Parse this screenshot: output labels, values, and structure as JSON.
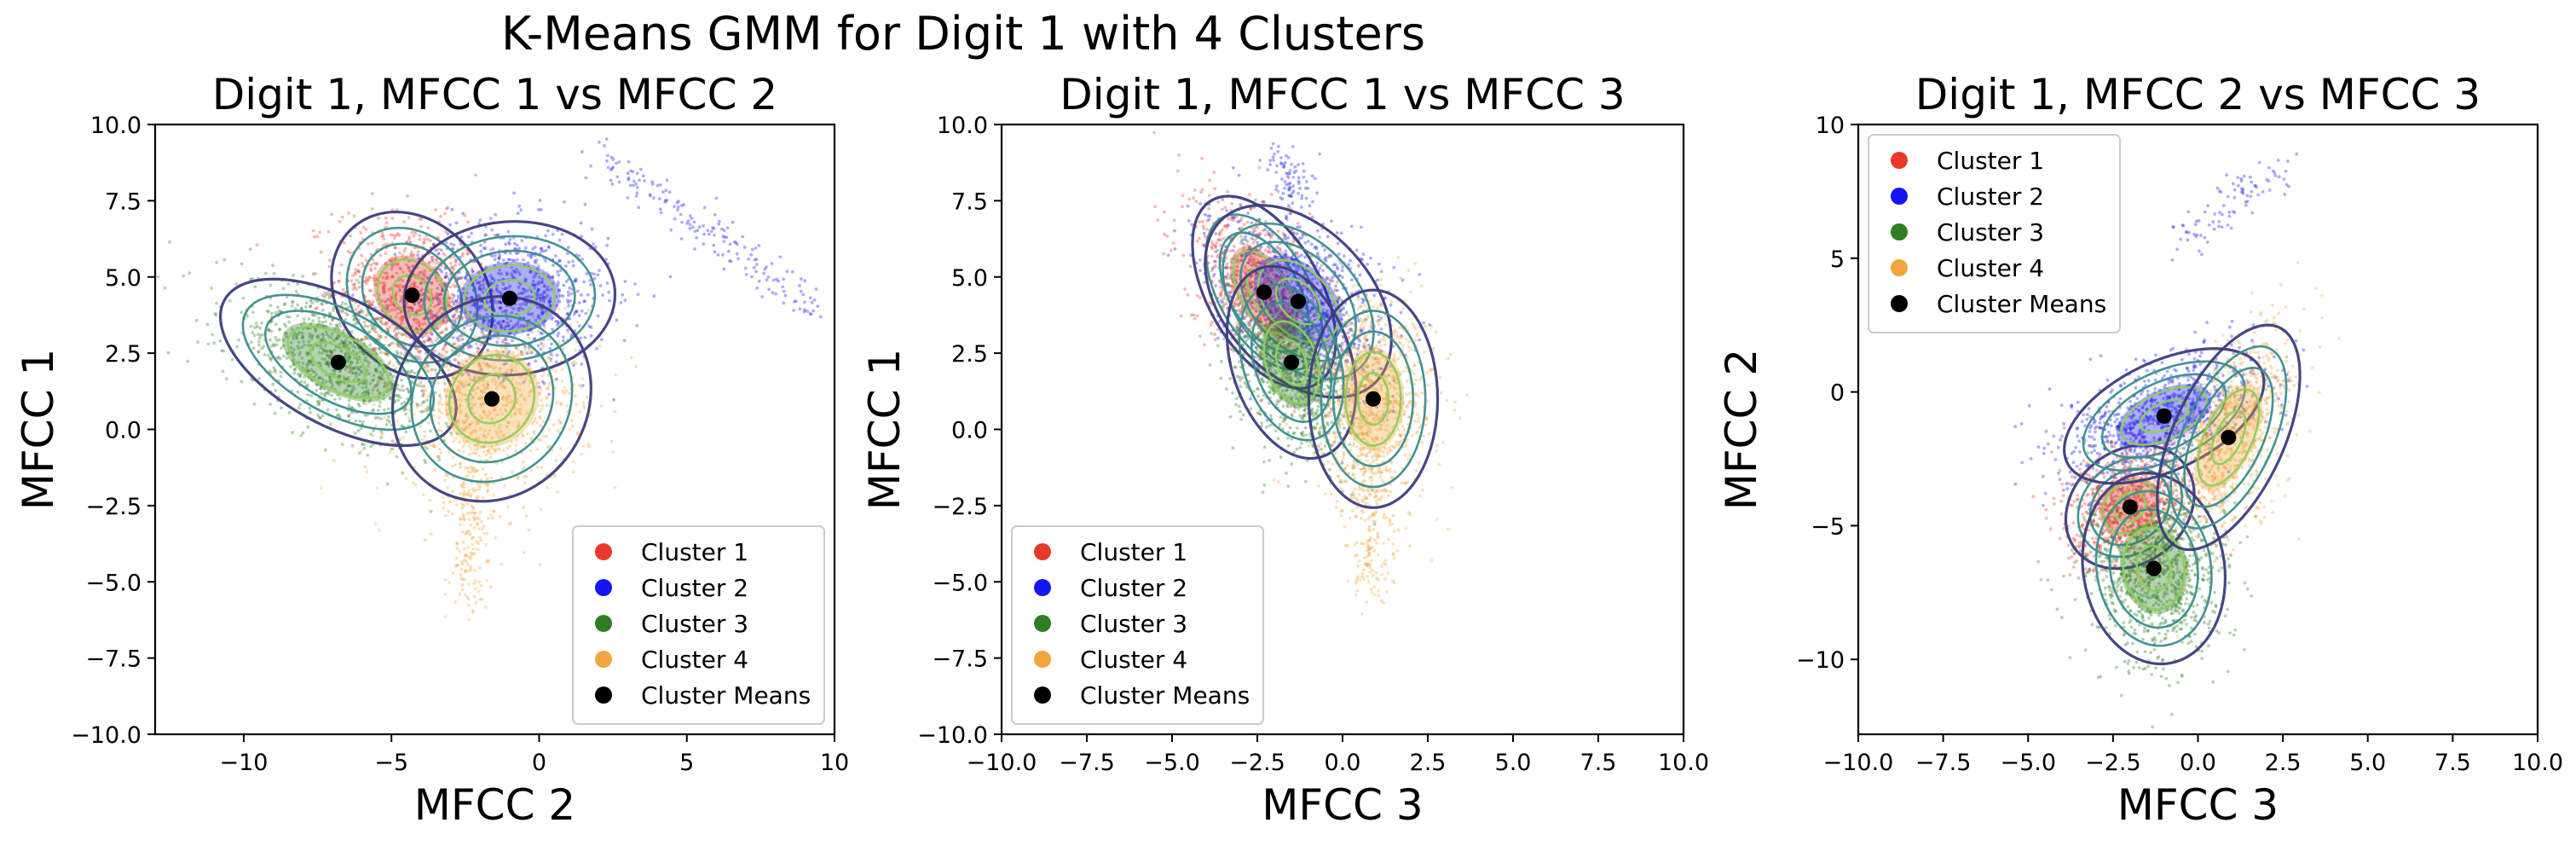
{
  "figure": {
    "suptitle": "K-Means GMM for Digit 1 with 4 Clusters"
  },
  "colors": {
    "cluster_1": "#e8392a",
    "cluster_2": "#1616f0",
    "cluster_3": "#2f7d25",
    "cluster_4": "#f0a63c",
    "means": "#000000",
    "contour_outer": "#3d3c7e",
    "contour_mid": "#3a8e8e",
    "contour_inner": "#8fcf5a"
  },
  "chart_data": [
    {
      "type": "scatter",
      "title": "Digit 1, MFCC 1 vs MFCC 2",
      "xlabel": "MFCC 2",
      "ylabel": "MFCC 1",
      "xlim": [
        -13,
        10
      ],
      "ylim": [
        -10,
        10
      ],
      "xticks": [
        -10,
        -5,
        0,
        5,
        10
      ],
      "xtick_labels": [
        "−10",
        "−5",
        "0",
        "5",
        "10"
      ],
      "yticks": [
        -10,
        -7.5,
        -5,
        -2.5,
        0,
        2.5,
        5,
        7.5,
        10
      ],
      "ytick_labels": [
        "−10.0",
        "−7.5",
        "−5.0",
        "−2.5",
        "0.0",
        "2.5",
        "5.0",
        "7.5",
        "10.0"
      ],
      "legend_position": "lower right",
      "series": [
        {
          "name": "Cluster 1",
          "center": [
            -4.3,
            4.4
          ],
          "spread": [
            1.3,
            1.3
          ],
          "rho": -0.2,
          "count": 900
        },
        {
          "name": "Cluster 2",
          "center": [
            -1.0,
            4.3
          ],
          "spread": [
            1.7,
            1.2
          ],
          "rho": 0.05,
          "count": 900,
          "tail": {
            "from": [
              2,
              9
            ],
            "to": [
              9.5,
              4
            ],
            "count": 180
          }
        },
        {
          "name": "Cluster 3",
          "center": [
            -6.8,
            2.2
          ],
          "spread": [
            1.9,
            1.3
          ],
          "rho": -0.55,
          "count": 1000
        },
        {
          "name": "Cluster 4",
          "center": [
            -1.6,
            1.0
          ],
          "spread": [
            1.6,
            1.6
          ],
          "rho": 0.1,
          "count": 900,
          "tail": {
            "from": [
              -2.2,
              -0.5
            ],
            "to": [
              -2.4,
              -5.8
            ],
            "count": 200
          }
        }
      ],
      "means": {
        "name": "Cluster Means",
        "x": [
          -4.3,
          -1.0,
          -6.8,
          -1.6
        ],
        "y": [
          4.4,
          4.3,
          2.2,
          1.0
        ]
      }
    },
    {
      "type": "scatter",
      "title": "Digit 1, MFCC 1 vs MFCC 3",
      "xlabel": "MFCC 3",
      "ylabel": "MFCC 1",
      "xlim": [
        -10,
        10
      ],
      "ylim": [
        -10,
        10
      ],
      "xticks": [
        -10,
        -7.5,
        -5,
        -2.5,
        0,
        2.5,
        5,
        7.5,
        10
      ],
      "xtick_labels": [
        "−10.0",
        "−7.5",
        "−5.0",
        "−2.5",
        "0.0",
        "2.5",
        "5.0",
        "7.5",
        "10.0"
      ],
      "yticks": [
        -10,
        -7.5,
        -5,
        -2.5,
        0,
        2.5,
        5,
        7.5,
        10
      ],
      "ytick_labels": [
        "−10.0",
        "−7.5",
        "−5.0",
        "−2.5",
        "0.0",
        "2.5",
        "5.0",
        "7.5",
        "10.0"
      ],
      "legend_position": "lower left",
      "series": [
        {
          "name": "Cluster 1",
          "center": [
            -2.3,
            4.5
          ],
          "spread": [
            1.0,
            1.5
          ],
          "rho": -0.5,
          "count": 900
        },
        {
          "name": "Cluster 2",
          "center": [
            -1.3,
            4.2
          ],
          "spread": [
            1.3,
            1.5
          ],
          "rho": -0.4,
          "count": 900,
          "tail": {
            "from": [
              -1.2,
              7.5
            ],
            "to": [
              -1.8,
              9.0
            ],
            "count": 80
          }
        },
        {
          "name": "Cluster 3",
          "center": [
            -1.5,
            2.2
          ],
          "spread": [
            0.9,
            1.5
          ],
          "rho": -0.3,
          "count": 1000
        },
        {
          "name": "Cluster 4",
          "center": [
            0.9,
            1.0
          ],
          "spread": [
            0.9,
            1.7
          ],
          "rho": 0.0,
          "count": 900,
          "tail": {
            "from": [
              0.8,
              -0.5
            ],
            "to": [
              0.8,
              -5.5
            ],
            "count": 200
          }
        }
      ],
      "means": {
        "name": "Cluster Means",
        "x": [
          -2.3,
          -1.3,
          -1.5,
          0.9
        ],
        "y": [
          4.5,
          4.2,
          2.2,
          1.0
        ]
      }
    },
    {
      "type": "scatter",
      "title": "Digit 1, MFCC 2 vs MFCC 3",
      "xlabel": "MFCC 3",
      "ylabel": "MFCC 2",
      "xlim": [
        -10,
        10
      ],
      "ylim": [
        -12.8,
        10
      ],
      "xticks": [
        -10,
        -7.5,
        -5,
        -2.5,
        0,
        2.5,
        5,
        7.5,
        10
      ],
      "xtick_labels": [
        "−10.0",
        "−7.5",
        "−5.0",
        "−2.5",
        "0.0",
        "2.5",
        "5.0",
        "7.5",
        "10.0"
      ],
      "yticks": [
        -10,
        -5,
        0,
        5,
        10
      ],
      "ytick_labels": [
        "−10",
        "−5",
        "0",
        "5",
        "10"
      ],
      "legend_position": "upper left",
      "series": [
        {
          "name": "Cluster 1",
          "center": [
            -2.0,
            -4.3
          ],
          "spread": [
            0.9,
            1.1
          ],
          "rho": 0.2,
          "count": 900
        },
        {
          "name": "Cluster 2",
          "center": [
            -1.0,
            -0.9
          ],
          "spread": [
            1.4,
            1.2
          ],
          "rho": 0.5,
          "count": 900,
          "tail": {
            "from": [
              -0.5,
              5.5
            ],
            "to": [
              2.5,
              8.5
            ],
            "count": 90
          }
        },
        {
          "name": "Cluster 3",
          "center": [
            -1.3,
            -6.6
          ],
          "spread": [
            1.0,
            1.7
          ],
          "rho": -0.1,
          "count": 1000
        },
        {
          "name": "Cluster 4",
          "center": [
            0.9,
            -1.7
          ],
          "spread": [
            1.0,
            2.0
          ],
          "rho": 0.55,
          "count": 900
        }
      ],
      "means": {
        "name": "Cluster Means",
        "x": [
          -2.0,
          -1.0,
          -1.3,
          0.9
        ],
        "y": [
          -4.3,
          -0.9,
          -6.6,
          -1.7
        ]
      }
    }
  ]
}
